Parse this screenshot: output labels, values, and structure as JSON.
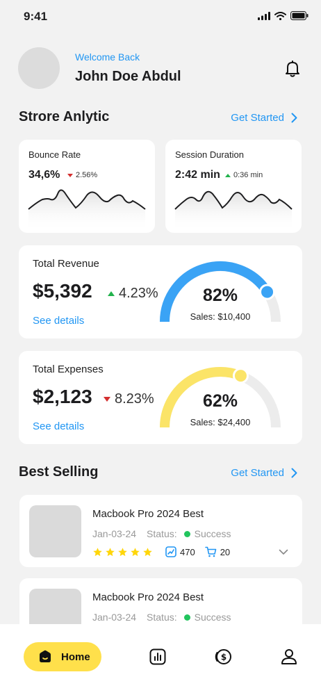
{
  "status_bar": {
    "time": "9:41"
  },
  "header": {
    "welcome": "Welcome Back",
    "name": "John Doe Abdul"
  },
  "analytics": {
    "title": "Strore Anlytic",
    "link": "Get Started",
    "bounce": {
      "title": "Bounce Rate",
      "value": "34,6%",
      "change": "2.56%",
      "direction": "down"
    },
    "session": {
      "title": "Session Duration",
      "value": "2:42 min",
      "change": "0:36 min",
      "direction": "up"
    }
  },
  "revenue": {
    "title": "Total Revenue",
    "value": "$5,392",
    "change": "4.23%",
    "direction": "up",
    "link": "See details",
    "gauge_percent": "82%",
    "gauge_fraction": 0.82,
    "gauge_sub": "Sales: $10,400",
    "color": "#3aa3f5"
  },
  "expenses": {
    "title": "Total Expenses",
    "value": "$2,123",
    "change": "8.23%",
    "direction": "down",
    "link": "See details",
    "gauge_percent": "62%",
    "gauge_fraction": 0.62,
    "gauge_sub": "Sales: $24,400",
    "color": "#fbe468"
  },
  "best_selling": {
    "title": "Best Selling",
    "link": "Get Started",
    "items": [
      {
        "name": "Macbook Pro 2024 Best",
        "date": "Jan-03-24",
        "status_label": "Status:",
        "status": "Success",
        "rating": 5,
        "views": "470",
        "cart": "20"
      },
      {
        "name": "Macbook Pro 2024 Best",
        "date": "Jan-03-24",
        "status_label": "Status:",
        "status": "Success"
      }
    ]
  },
  "nav": {
    "home": "Home",
    "icons": [
      "home-icon",
      "chart-icon",
      "coin-icon",
      "profile-icon"
    ]
  },
  "colors": {
    "accent": "#2196f3",
    "success": "#22c55e",
    "star": "#ffd60a",
    "home_pill": "#ffe04b"
  }
}
